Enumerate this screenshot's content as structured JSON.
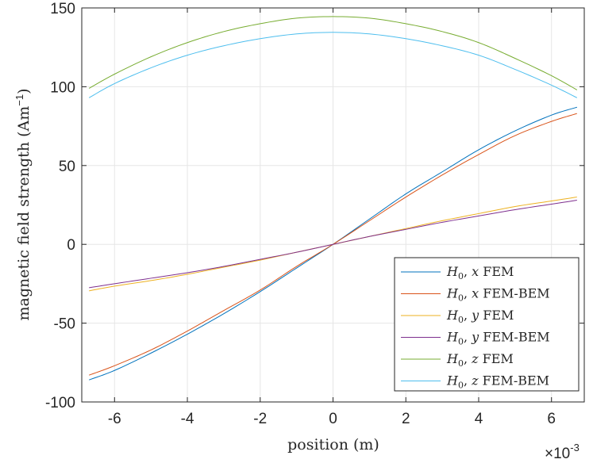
{
  "chart_data": {
    "type": "line",
    "xlabel": "position (m)",
    "ylabel": "magnetic field strength (Am",
    "ylabel_sup": "−1",
    "ylabel_close": ")",
    "x_exponent_base": "×10",
    "x_exponent_power": "-3",
    "x_scale": 0.001,
    "xlim": [
      -0.0069,
      0.0069
    ],
    "ylim": [
      -100,
      150
    ],
    "xticks": [
      -6,
      -4,
      -2,
      0,
      2,
      4,
      6
    ],
    "yticks": [
      -100,
      -50,
      0,
      50,
      100,
      150
    ],
    "grid": true,
    "legend_position": "bottom-right",
    "x": [
      -0.0067,
      -0.006,
      -0.005,
      -0.004,
      -0.003,
      -0.002,
      -0.001,
      0,
      0.001,
      0.002,
      0.003,
      0.004,
      0.005,
      0.006,
      0.0067
    ],
    "series": [
      {
        "legend_math": "H",
        "legend_sub": "0",
        "legend_axis": "x",
        "legend_kind": "FEM",
        "color": "#0072BD",
        "values": [
          -86,
          -80,
          -69,
          -57,
          -44,
          -30,
          -15,
          0,
          16,
          32,
          46,
          60,
          72,
          82,
          87
        ]
      },
      {
        "legend_math": "H",
        "legend_sub": "0",
        "legend_axis": "x",
        "legend_kind": "FEM-BEM",
        "color": "#D95319",
        "values": [
          -83,
          -77,
          -67,
          -55,
          -42,
          -29,
          -14,
          0,
          15,
          30,
          44,
          57,
          69,
          78,
          83
        ]
      },
      {
        "legend_math": "H",
        "legend_sub": "0",
        "legend_axis": "y",
        "legend_kind": "FEM",
        "color": "#EDB120",
        "values": [
          -29.5,
          -26.5,
          -23,
          -19,
          -14.5,
          -10,
          -5,
          0,
          5,
          10,
          15,
          19.5,
          24,
          27.5,
          30
        ]
      },
      {
        "legend_math": "H",
        "legend_sub": "0",
        "legend_axis": "y",
        "legend_kind": "FEM-BEM",
        "color": "#7E2F8E",
        "values": [
          -27.5,
          -25,
          -21.5,
          -18,
          -14,
          -9.5,
          -5,
          0,
          5,
          9.5,
          14,
          18,
          22,
          25.5,
          28
        ]
      },
      {
        "legend_math": "H",
        "legend_sub": "0",
        "legend_axis": "z",
        "legend_kind": "FEM",
        "color": "#77AC30",
        "values": [
          99,
          108,
          119,
          128,
          135,
          140,
          143.5,
          144.5,
          143.5,
          140,
          135,
          128,
          118,
          107,
          98
        ]
      },
      {
        "legend_math": "H",
        "legend_sub": "0",
        "legend_axis": "z",
        "legend_kind": "FEM-BEM",
        "color": "#4DBEEE",
        "values": [
          93,
          102,
          112,
          120,
          126,
          130.5,
          133.5,
          134.5,
          133.5,
          130.5,
          126,
          120,
          111,
          101,
          93
        ]
      }
    ]
  }
}
